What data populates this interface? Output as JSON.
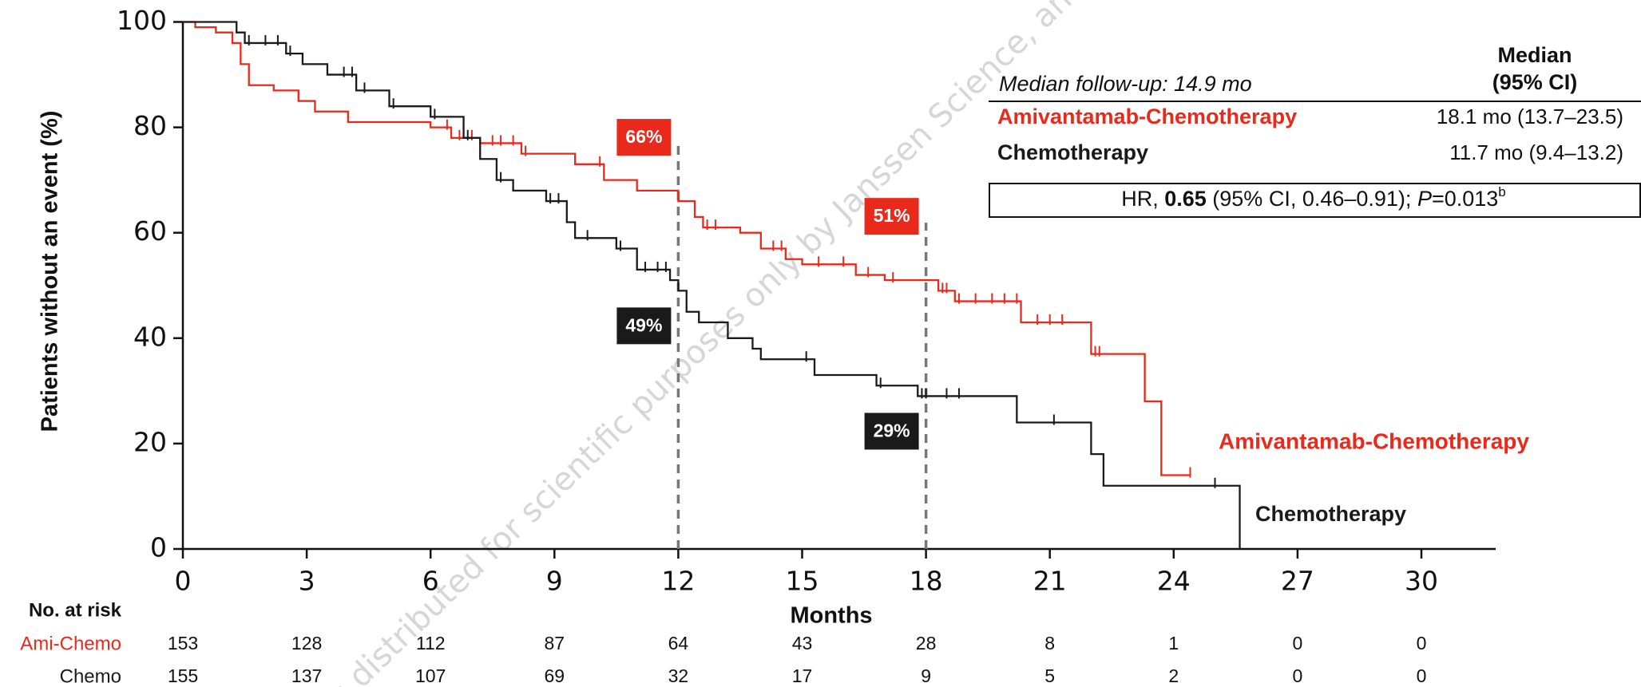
{
  "chart_data": {
    "type": "step",
    "y_label": "Patients without an event (%)",
    "x_label": "Months",
    "xlim": [
      0,
      31.8
    ],
    "ylim": [
      0,
      100
    ],
    "xticks": [
      0,
      3,
      6,
      9,
      12,
      15,
      18,
      21,
      24,
      27,
      30
    ],
    "yticks": [
      0,
      20,
      40,
      60,
      80,
      100
    ],
    "series": [
      {
        "name": "Amivantamab-Chemotherapy",
        "color": "#e8291c",
        "x": [
          0,
          0.3,
          0.8,
          1.2,
          1.4,
          1.6,
          2.2,
          2.8,
          3.2,
          4,
          6,
          6.5,
          7.2,
          8.2,
          9.5,
          10.2,
          11,
          12,
          12.4,
          12.6,
          13.5,
          14,
          14.6,
          15,
          16.3,
          17,
          18.3,
          18.7,
          20.3,
          22,
          23.3,
          23.7,
          24.4
        ],
        "values": [
          100,
          99,
          98,
          96,
          92,
          88,
          87,
          85,
          83,
          81,
          80,
          78,
          77,
          75,
          73,
          70,
          68,
          66,
          63,
          61,
          60,
          57,
          55,
          54,
          52,
          51,
          49,
          47,
          43,
          37,
          28,
          14,
          14
        ],
        "censored_x": [
          6.4,
          6.7,
          7.0,
          7.5,
          7.7,
          8.0,
          8.3,
          10.1,
          12.7,
          12.9,
          14.3,
          14.5,
          15.4,
          16.0,
          16.6,
          17.2,
          18.4,
          18.5,
          18.8,
          19.2,
          19.6,
          19.9,
          20.2,
          20.7,
          21.0,
          21.3,
          22.1,
          22.2,
          24.4
        ]
      },
      {
        "name": "Chemotherapy",
        "color": "#1a1a1a",
        "x": [
          0,
          1.3,
          1.5,
          2.5,
          2.9,
          3.5,
          4.2,
          5,
          6,
          6.8,
          7.2,
          7.6,
          8,
          8.8,
          9.3,
          9.5,
          10.5,
          11,
          11.8,
          12,
          12.2,
          12.5,
          13.2,
          13.8,
          14,
          15.3,
          16.8,
          17.8,
          20.2,
          22,
          22.3,
          25.6
        ],
        "values": [
          100,
          98,
          96,
          94,
          92,
          90,
          87,
          84,
          82,
          78,
          74,
          70,
          68,
          66,
          62,
          59,
          57,
          53,
          51,
          49,
          45,
          43,
          40,
          38,
          36,
          33,
          31,
          29,
          24,
          18,
          12,
          0
        ],
        "censored_x": [
          1.6,
          2.0,
          2.3,
          2.6,
          3.9,
          4.1,
          4.4,
          5.1,
          6.1,
          6.9,
          7.7,
          8.9,
          9.1,
          9.8,
          10.6,
          11.2,
          11.5,
          11.7,
          15.1,
          16.9,
          17.9,
          18.0,
          18.5,
          18.8,
          21.1,
          25.0
        ]
      }
    ],
    "landmarks": [
      {
        "x": 12,
        "series": 0,
        "value": 66,
        "label": "66%"
      },
      {
        "x": 12,
        "series": 1,
        "value": 49,
        "label": "49%"
      },
      {
        "x": 18,
        "series": 0,
        "value": 51,
        "label": "51%"
      },
      {
        "x": 18,
        "series": 1,
        "value": 29,
        "label": "29%"
      }
    ],
    "median_table": {
      "follow_up": "Median follow-up: 14.9 mo",
      "header": [
        "Median",
        "(95% CI)"
      ],
      "rows": [
        {
          "label": "Amivantamab-Chemotherapy",
          "value": "18.1 mo (13.7–23.5)"
        },
        {
          "label": "Chemotherapy",
          "value": "11.7 mo (9.4–13.2)"
        }
      ],
      "hr": [
        "HR, ",
        "0.65",
        " (95% CI, 0.46–0.91); ",
        "P",
        "=0.013",
        "b"
      ]
    },
    "risk_table": {
      "title": "No. at risk",
      "rows": [
        {
          "label": "Ami-Chemo",
          "counts": [
            153,
            128,
            112,
            87,
            64,
            43,
            28,
            8,
            1,
            0,
            0
          ]
        },
        {
          "label": "Chemo",
          "counts": [
            155,
            137,
            107,
            69,
            32,
            17,
            9,
            5,
            2,
            0,
            0
          ]
        }
      ]
    },
    "watermark": "is distributed for scientific purposes only by Janssen Science, and"
  }
}
